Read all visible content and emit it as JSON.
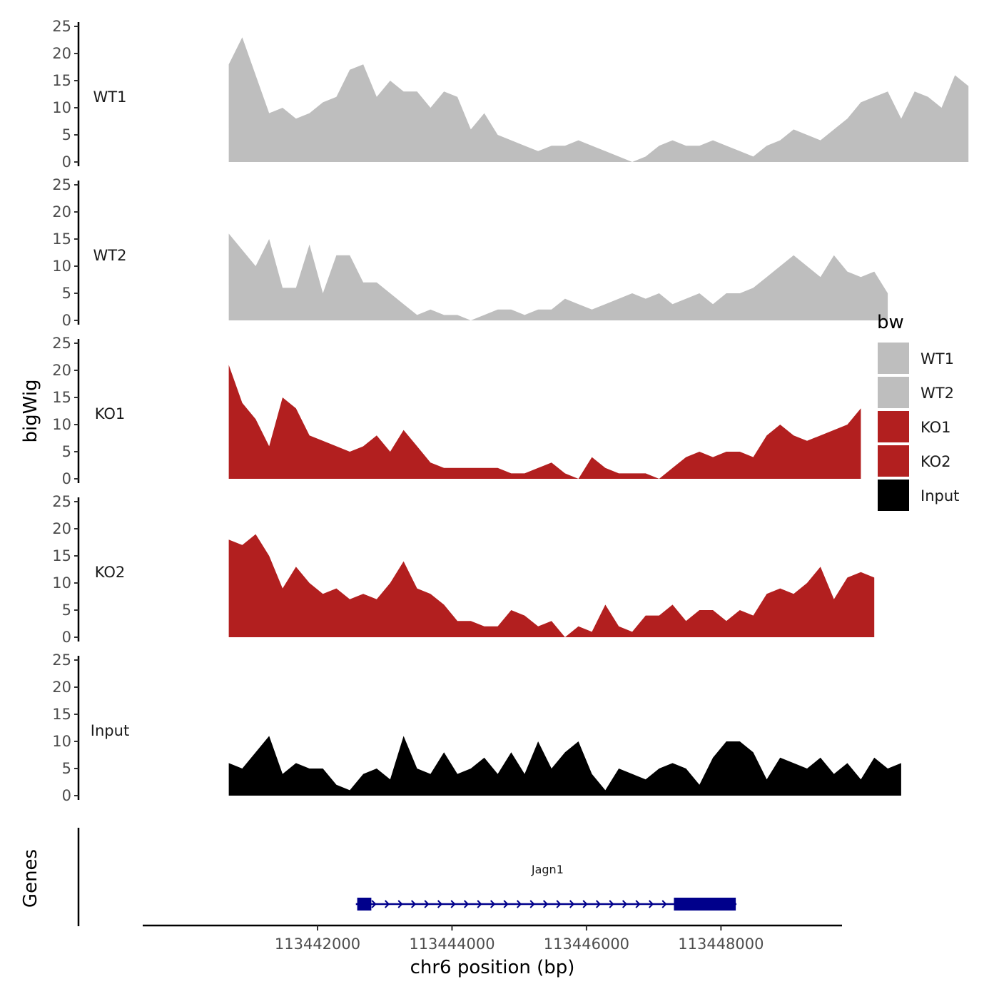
{
  "chart_data": {
    "type": "area",
    "title": "",
    "ylabel": "bigWig",
    "xlabel": "chr6 position (bp)",
    "genes_label": "Genes",
    "ylim": [
      0,
      25
    ],
    "yticks": [
      "0",
      "5",
      "10",
      "15",
      "20",
      "25"
    ],
    "xlim": [
      113439400,
      113449800
    ],
    "xticks": [
      {
        "value": 113442000,
        "label": "113442000"
      },
      {
        "value": 113444000,
        "label": "113444000"
      },
      {
        "value": 113446000,
        "label": "113446000"
      },
      {
        "value": 113448000,
        "label": "113448000"
      }
    ],
    "legend": {
      "title": "bw",
      "position": "right",
      "items": [
        {
          "label": "WT1",
          "color": "#bebebe"
        },
        {
          "label": "WT2",
          "color": "#bebebe"
        },
        {
          "label": "KO1",
          "color": "#b21f1f"
        },
        {
          "label": "KO2",
          "color": "#b21f1f"
        },
        {
          "label": "Input",
          "color": "#000000"
        }
      ]
    },
    "x_start": 113440680,
    "x_step": 200,
    "series": [
      {
        "name": "WT1",
        "color": "#bebebe",
        "values": [
          18,
          23,
          16,
          9,
          10,
          8,
          9,
          11,
          12,
          17,
          18,
          12,
          15,
          13,
          13,
          10,
          13,
          12,
          6,
          9,
          5,
          4,
          3,
          2,
          3,
          3,
          4,
          3,
          2,
          1,
          0,
          1,
          3,
          4,
          3,
          3,
          4,
          3,
          2,
          1,
          3,
          4,
          6,
          5,
          4,
          6,
          8,
          11,
          12,
          13,
          8,
          13,
          12,
          10,
          16,
          14
        ]
      },
      {
        "name": "WT2",
        "color": "#bebebe",
        "values": [
          16,
          13,
          10,
          15,
          6,
          6,
          14,
          5,
          12,
          12,
          7,
          7,
          5,
          3,
          1,
          2,
          1,
          1,
          0,
          1,
          2,
          2,
          1,
          2,
          2,
          4,
          3,
          2,
          3,
          4,
          5,
          4,
          5,
          3,
          4,
          5,
          3,
          5,
          5,
          6,
          8,
          10,
          12,
          10,
          8,
          12,
          9,
          8,
          9,
          5
        ]
      },
      {
        "name": "KO1",
        "color": "#b21f1f",
        "values": [
          21,
          14,
          11,
          6,
          15,
          13,
          8,
          7,
          6,
          5,
          6,
          8,
          5,
          9,
          6,
          3,
          2,
          2,
          2,
          2,
          2,
          1,
          1,
          2,
          3,
          1,
          0,
          4,
          2,
          1,
          1,
          1,
          0,
          2,
          4,
          5,
          4,
          5,
          5,
          4,
          8,
          10,
          8,
          7,
          8,
          9,
          10,
          13
        ]
      },
      {
        "name": "KO2",
        "color": "#b21f1f",
        "values": [
          18,
          17,
          19,
          15,
          9,
          13,
          10,
          8,
          9,
          7,
          8,
          7,
          10,
          14,
          9,
          8,
          6,
          3,
          3,
          2,
          2,
          5,
          4,
          2,
          3,
          0,
          2,
          1,
          6,
          2,
          1,
          4,
          4,
          6,
          3,
          5,
          5,
          3,
          5,
          4,
          8,
          9,
          8,
          10,
          13,
          7,
          11,
          12,
          11
        ]
      },
      {
        "name": "Input",
        "color": "#000000",
        "values": [
          6,
          5,
          8,
          11,
          4,
          6,
          5,
          5,
          2,
          1,
          4,
          5,
          3,
          11,
          5,
          4,
          8,
          4,
          5,
          7,
          4,
          8,
          4,
          10,
          5,
          8,
          10,
          4,
          1,
          5,
          4,
          3,
          5,
          6,
          5,
          2,
          7,
          10,
          10,
          8,
          3,
          7,
          6,
          5,
          7,
          4,
          6,
          3,
          7,
          5,
          6
        ]
      }
    ],
    "gene": {
      "name": "Jagn1",
      "color": "#00008b",
      "start": 113442570,
      "end": 113448230,
      "exons": [
        [
          113442590,
          113442800
        ],
        [
          113447300,
          113448220
        ]
      ]
    }
  }
}
